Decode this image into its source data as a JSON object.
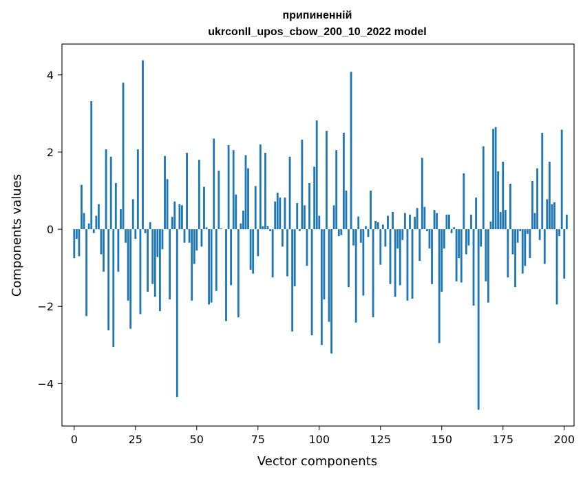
{
  "chart_data": {
    "type": "bar",
    "title_line1": "припиненній",
    "title_line2": "ukrconll_upos_cbow_200_10_2022 model",
    "xlabel": "Vector components",
    "ylabel": "Components values",
    "xlim": [
      -5,
      204
    ],
    "ylim": [
      -5.1,
      4.8
    ],
    "xticks": [
      0,
      25,
      50,
      75,
      100,
      125,
      150,
      175,
      200
    ],
    "yticks": [
      -4,
      -2,
      0,
      2,
      4
    ],
    "ytick_labels": [
      "−4",
      "−2",
      "0",
      "2",
      "4"
    ],
    "bar_color": "#1f77b4",
    "grid": false,
    "values": [
      -0.75,
      -0.25,
      -0.7,
      1.15,
      0.42,
      -2.25,
      0.15,
      3.32,
      -0.1,
      0.35,
      0.65,
      -0.65,
      -1.1,
      2.07,
      -2.62,
      1.88,
      -3.05,
      1.2,
      -1.1,
      0.52,
      3.8,
      -0.35,
      -1.85,
      -2.58,
      0.78,
      -0.25,
      2.07,
      -2.2,
      4.38,
      -0.1,
      -1.62,
      0.18,
      -1.42,
      -1.75,
      -0.72,
      -2.12,
      -0.52,
      1.9,
      1.3,
      -1.82,
      0.32,
      0.72,
      -4.35,
      0.65,
      0.62,
      -0.35,
      1.98,
      -0.35,
      -1.85,
      -0.9,
      -0.55,
      1.8,
      -0.45,
      1.1,
      0.05,
      -1.95,
      -1.9,
      2.35,
      -1.6,
      1.52,
      0.02,
      0.0,
      -2.38,
      2.18,
      -1.45,
      2.05,
      0.9,
      -2.28,
      0.15,
      0.48,
      1.92,
      1.58,
      -1.05,
      -1.15,
      1.12,
      -0.7,
      2.2,
      0.08,
      1.98,
      0.08,
      -0.05,
      -1.25,
      0.72,
      0.95,
      0.82,
      -0.45,
      0.82,
      -1.22,
      1.88,
      -2.65,
      -1.48,
      0.68,
      -0.05,
      2.32,
      0.62,
      -0.95,
      1.2,
      -2.75,
      1.62,
      2.82,
      0.35,
      -3.0,
      -1.82,
      2.55,
      -2.4,
      -3.22,
      0.62,
      2.05,
      -0.18,
      -0.15,
      2.5,
      1.0,
      -1.5,
      4.08,
      -0.42,
      -2.42,
      0.33,
      -0.35,
      -1.72,
      0.08,
      -0.2,
      1.0,
      -2.28,
      0.22,
      0.18,
      -0.92,
      0.12,
      -0.45,
      0.35,
      -1.42,
      0.45,
      -1.75,
      -0.5,
      -1.45,
      -0.28,
      0.42,
      -1.85,
      0.38,
      -1.8,
      0.32,
      0.55,
      -0.82,
      1.85,
      0.58,
      -0.05,
      -0.5,
      -1.42,
      0.5,
      0.42,
      -2.95,
      -1.62,
      -0.5,
      0.38,
      0.38,
      -0.1,
      0.05,
      -1.35,
      -0.75,
      -1.38,
      1.45,
      -0.65,
      -0.42,
      0.38,
      -1.98,
      0.82,
      -4.68,
      -0.45,
      2.15,
      -1.35,
      -1.9,
      0.2,
      2.6,
      2.65,
      1.5,
      0.45,
      1.75,
      0.5,
      -1.25,
      1.18,
      -0.65,
      -1.5,
      -0.35,
      -0.05,
      -1.15,
      -0.95,
      -0.12,
      -0.75,
      1.25,
      0.42,
      1.58,
      -0.28,
      2.5,
      -0.9,
      0.78,
      1.75,
      0.65,
      0.7,
      -1.95,
      -0.18,
      2.58,
      -1.28,
      0.38
    ]
  }
}
